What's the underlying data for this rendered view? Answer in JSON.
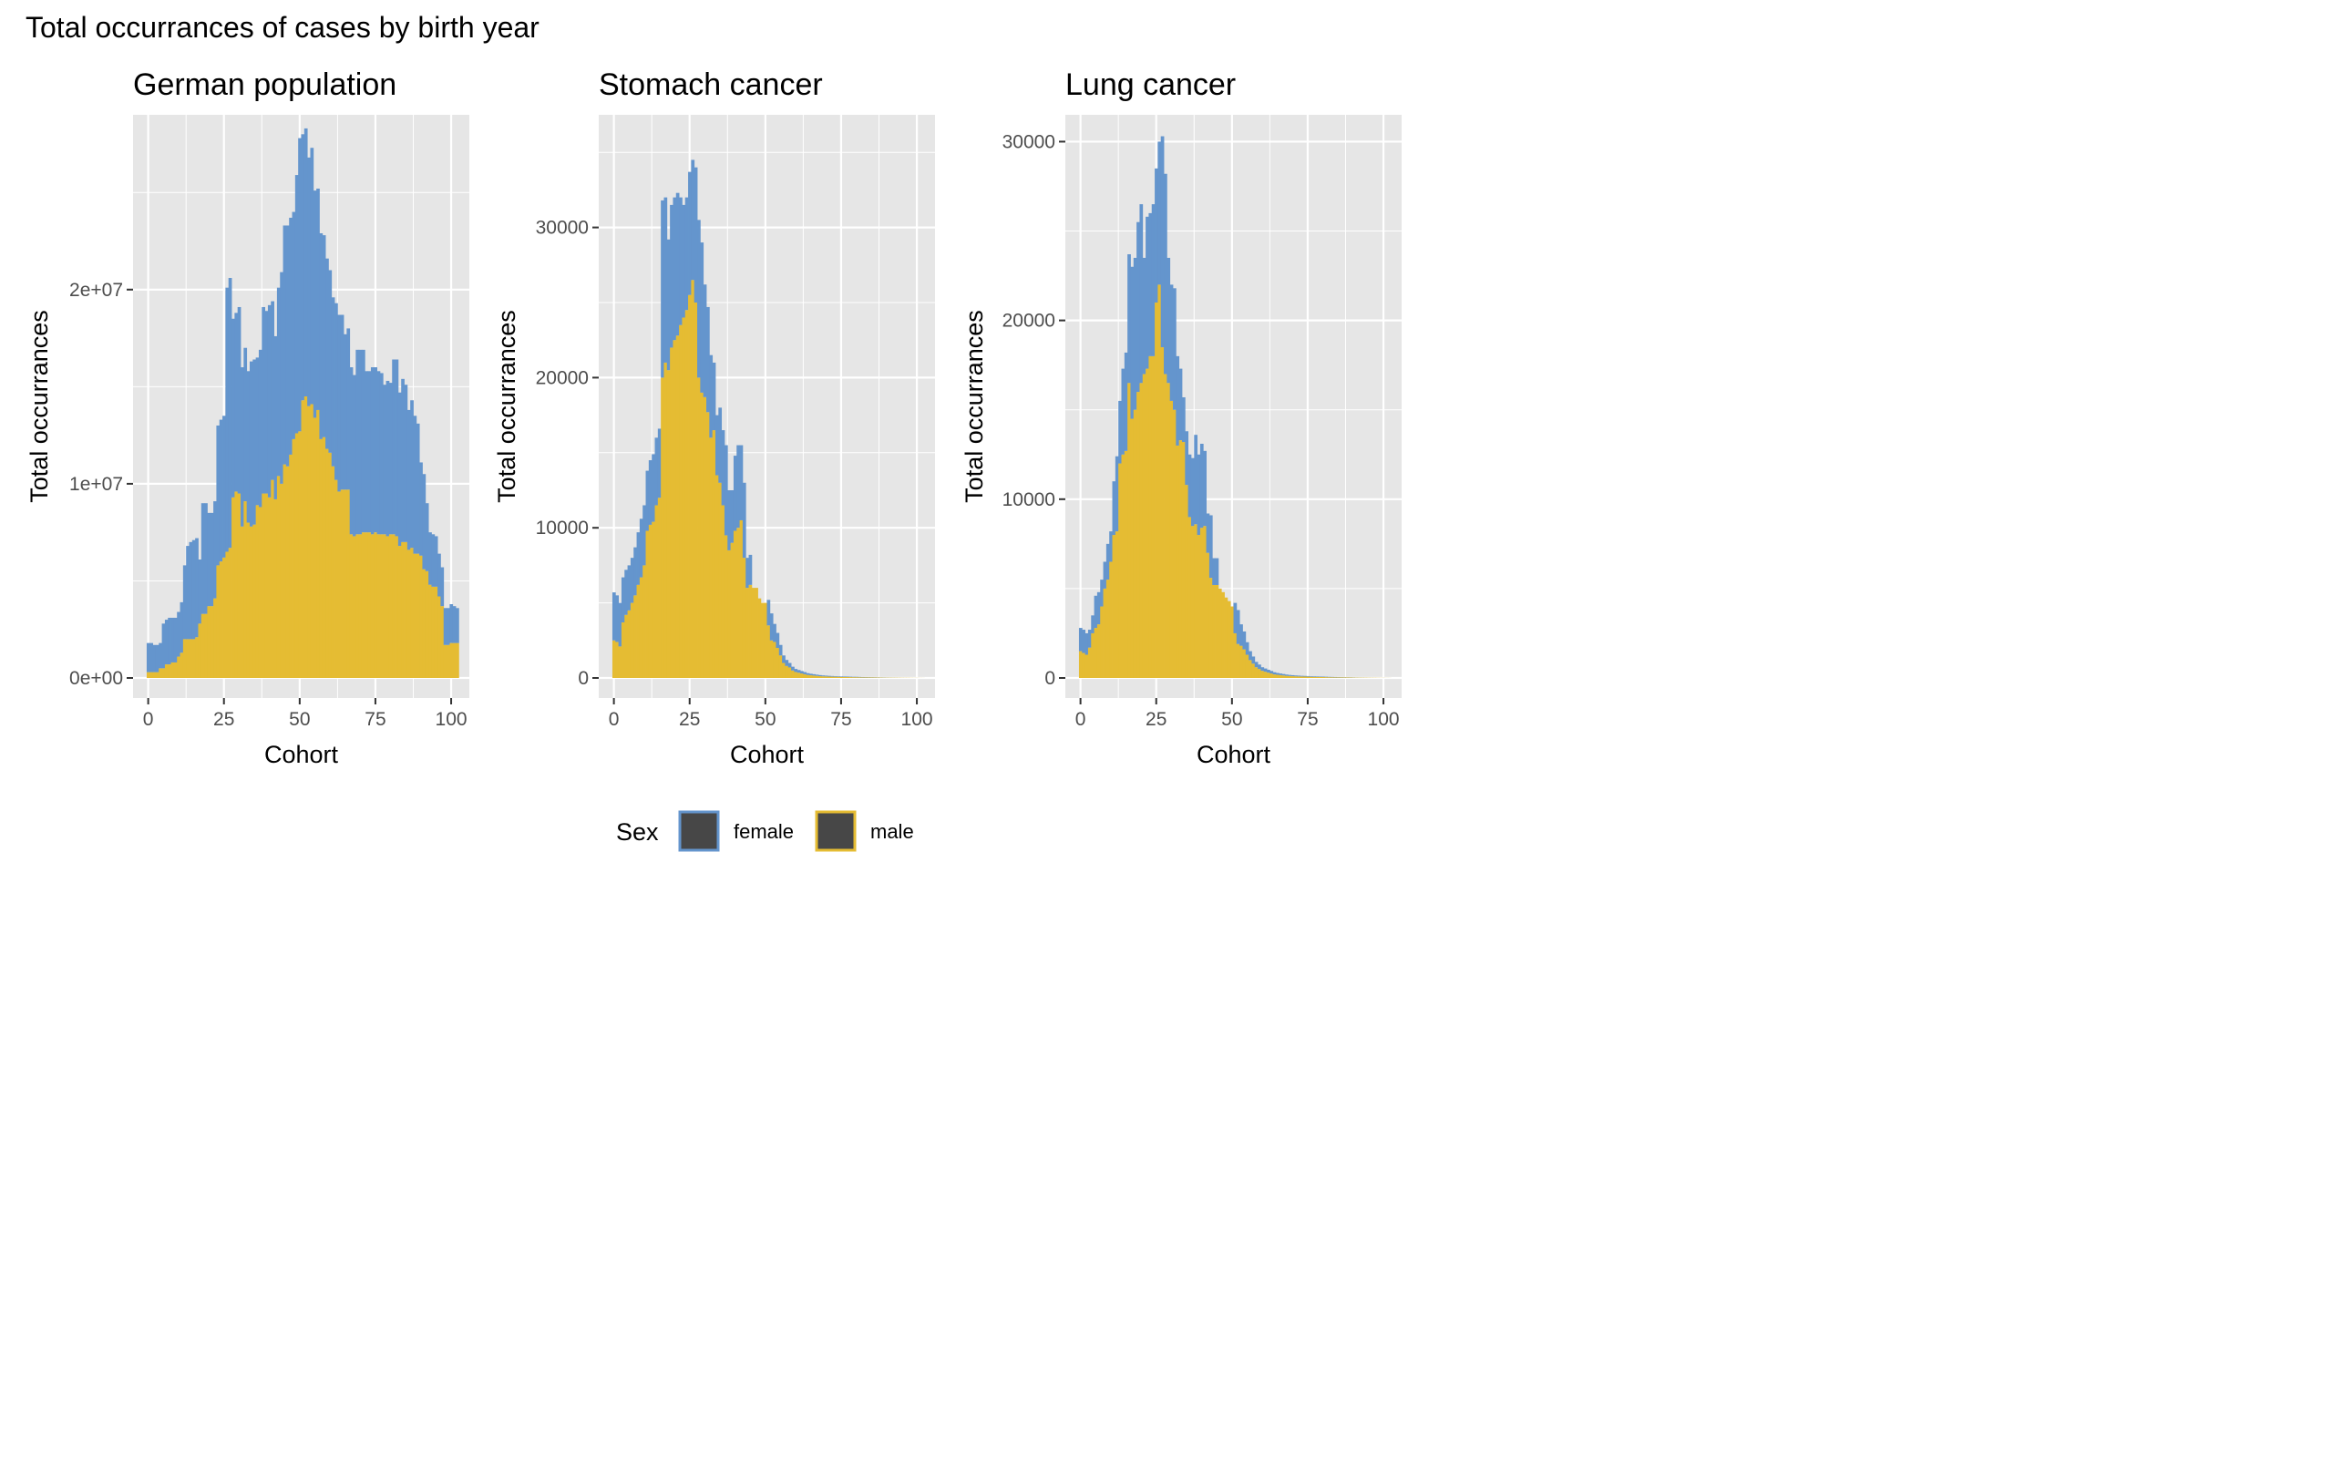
{
  "title": "Total occurrances of cases by birth year",
  "colors": {
    "female": "#6495CD",
    "male": "#E5BC33",
    "panel_bg": "#E6E6E6",
    "grid": "#FFFFFF",
    "legend_key": "#474747"
  },
  "legend": {
    "title": "Sex",
    "items": [
      {
        "label": "female",
        "color": "#6495CD"
      },
      {
        "label": "male",
        "color": "#E5BC33"
      }
    ]
  },
  "chart_data": [
    {
      "type": "bar",
      "stacked": true,
      "title": "German population",
      "xlabel": "Cohort",
      "ylabel": "Total occurrances",
      "xlim": [
        -5,
        106
      ],
      "ylim": [
        0,
        29000000
      ],
      "x_ticks": [
        0,
        25,
        50,
        75,
        100
      ],
      "x_tick_labels": [
        "0",
        "25",
        "50",
        "75",
        "100"
      ],
      "y_ticks": [
        0,
        10000000,
        20000000
      ],
      "y_tick_labels": [
        "0e+00",
        "1e+07",
        "2e+07"
      ],
      "x": [
        0,
        1,
        2,
        3,
        4,
        5,
        6,
        7,
        8,
        9,
        10,
        11,
        12,
        13,
        14,
        15,
        16,
        17,
        18,
        19,
        20,
        21,
        22,
        23,
        24,
        25,
        26,
        27,
        28,
        29,
        30,
        31,
        32,
        33,
        34,
        35,
        36,
        37,
        38,
        39,
        40,
        41,
        42,
        43,
        44,
        45,
        46,
        47,
        48,
        49,
        50,
        51,
        52,
        53,
        54,
        55,
        56,
        57,
        58,
        59,
        60,
        61,
        62,
        63,
        64,
        65,
        66,
        67,
        68,
        69,
        70,
        71,
        72,
        73,
        74,
        75,
        76,
        77,
        78,
        79,
        80,
        81,
        82,
        83,
        84,
        85,
        86,
        87,
        88,
        89,
        90,
        91,
        92,
        93,
        94,
        95,
        96,
        97,
        98,
        99,
        100,
        101,
        102
      ],
      "series": [
        {
          "name": "male",
          "values": [
            300000,
            300000,
            300000,
            300000,
            500000,
            500000,
            700000,
            700000,
            800000,
            800000,
            1100000,
            1300000,
            2000000,
            2000000,
            2000000,
            2000000,
            2100000,
            2800000,
            3300000,
            3300000,
            3700000,
            3700000,
            4100000,
            5800000,
            6000000,
            6200000,
            6500000,
            6700000,
            9300000,
            9600000,
            9500000,
            7800000,
            9100000,
            8000000,
            7800000,
            7900000,
            8900000,
            8800000,
            9500000,
            9500000,
            9300000,
            10200000,
            9200000,
            10400000,
            10000000,
            11000000,
            10900000,
            11500000,
            12300000,
            12600000,
            12700000,
            14300000,
            14500000,
            14000000,
            14100000,
            13400000,
            13800000,
            12300000,
            12400000,
            11800000,
            11600000,
            10900000,
            10200000,
            9600000,
            9700000,
            9700000,
            9700000,
            7400000,
            7300000,
            7400000,
            7400000,
            7500000,
            7500000,
            7500000,
            7400000,
            7500000,
            7400000,
            7400000,
            7400000,
            7300000,
            7400000,
            7400000,
            7300000,
            6800000,
            7000000,
            7000000,
            6600000,
            6700000,
            6400000,
            6400000,
            6300000,
            5600000,
            5500000,
            4800000,
            4700000,
            4700000,
            4200000,
            3700000,
            1700000,
            1700000,
            1800000,
            1800000,
            1800000
          ]
        },
        {
          "name": "female",
          "values": [
            1500000,
            1500000,
            1400000,
            1400000,
            1300000,
            2300000,
            2300000,
            2400000,
            2300000,
            2300000,
            2300000,
            2600000,
            3800000,
            4800000,
            5000000,
            5100000,
            5100000,
            3300000,
            5700000,
            5700000,
            4800000,
            4800000,
            5000000,
            7200000,
            7300000,
            7300000,
            13600000,
            13900000,
            9200000,
            9200000,
            9600000,
            8200000,
            7900000,
            7800000,
            8500000,
            8500000,
            7600000,
            8100000,
            9600000,
            9400000,
            9900000,
            9200000,
            8400000,
            9700000,
            10900000,
            12300000,
            12400000,
            12200000,
            11700000,
            13300000,
            15100000,
            13700000,
            13800000,
            12800000,
            13200000,
            11700000,
            11400000,
            10600000,
            10400000,
            9800000,
            9400000,
            8700000,
            9100000,
            9100000,
            9000000,
            8000000,
            8300000,
            8600000,
            8300000,
            9500000,
            9500000,
            9400000,
            8300000,
            8300000,
            8600000,
            8500000,
            8400000,
            8300000,
            7700000,
            8000000,
            7800000,
            9000000,
            9100000,
            7900000,
            8400000,
            8100000,
            7200000,
            7600000,
            7100000,
            6700000,
            4800000,
            4900000,
            3500000,
            2700000,
            2700000,
            2600000,
            2200000,
            2000000,
            1900000,
            1900000,
            2000000,
            1900000,
            1800000
          ]
        }
      ]
    },
    {
      "type": "bar",
      "stacked": true,
      "title": "Stomach cancer",
      "xlabel": "Cohort",
      "ylabel": "Total occurrances",
      "xlim": [
        -5,
        106
      ],
      "ylim": [
        0,
        37500
      ],
      "x_ticks": [
        0,
        25,
        50,
        75,
        100
      ],
      "x_tick_labels": [
        "0",
        "25",
        "50",
        "75",
        "100"
      ],
      "y_ticks": [
        0,
        10000,
        20000,
        30000
      ],
      "y_tick_labels": [
        "0",
        "10000",
        "20000",
        "30000"
      ],
      "x": [
        0,
        1,
        2,
        3,
        4,
        5,
        6,
        7,
        8,
        9,
        10,
        11,
        12,
        13,
        14,
        15,
        16,
        17,
        18,
        19,
        20,
        21,
        22,
        23,
        24,
        25,
        26,
        27,
        28,
        29,
        30,
        31,
        32,
        33,
        34,
        35,
        36,
        37,
        38,
        39,
        40,
        41,
        42,
        43,
        44,
        45,
        46,
        47,
        48,
        49,
        50,
        51,
        52,
        53,
        54,
        55,
        56,
        57,
        58,
        59,
        60,
        61,
        62,
        63,
        64,
        65,
        66,
        67,
        68,
        69,
        70,
        71,
        72,
        73,
        74,
        75,
        76,
        77,
        78,
        79,
        80,
        81,
        82,
        83,
        84,
        85,
        86,
        87,
        88,
        89,
        90,
        91,
        92,
        93,
        94,
        95,
        96,
        97,
        98,
        99,
        100,
        101,
        102
      ],
      "series": [
        {
          "name": "male",
          "values": [
            2500,
            2400,
            2100,
            3700,
            4200,
            4500,
            5000,
            5500,
            6200,
            6700,
            7500,
            9800,
            10200,
            10400,
            11500,
            12000,
            20000,
            21000,
            20500,
            22000,
            22500,
            22800,
            23500,
            24000,
            24500,
            25500,
            26500,
            25000,
            20000,
            19000,
            18700,
            17700,
            16000,
            16500,
            13500,
            13000,
            11500,
            9500,
            8500,
            9000,
            9800,
            10000,
            10500,
            8000,
            6000,
            6200,
            6000,
            6000,
            5300,
            5000,
            5000,
            3500,
            2500,
            2400,
            2000,
            1500,
            1000,
            800,
            700,
            500,
            400,
            350,
            300,
            250,
            200,
            180,
            160,
            140,
            120,
            110,
            100,
            90,
            85,
            80,
            75,
            70,
            65,
            60,
            55,
            50,
            50,
            45,
            40,
            38,
            35,
            32,
            30,
            28,
            26,
            24,
            22,
            20,
            18,
            16,
            14,
            12,
            10,
            10,
            8,
            6,
            5,
            4,
            3
          ]
        },
        {
          "name": "female",
          "values": [
            3200,
            3100,
            2900,
            3000,
            3000,
            3000,
            3000,
            3200,
            3500,
            3900,
            4000,
            4000,
            4300,
            4500,
            4500,
            4600,
            11800,
            11000,
            8700,
            9500,
            9500,
            9500,
            8500,
            7500,
            7500,
            8200,
            8000,
            9000,
            10500,
            10000,
            7500,
            7000,
            5500,
            4500,
            4000,
            5000,
            5000,
            6000,
            4000,
            3500,
            5000,
            5500,
            5000,
            5000,
            2000,
            2000,
            0,
            0,
            0,
            0,
            0,
            1700,
            1800,
            1200,
            1000,
            700,
            500,
            400,
            300,
            250,
            200,
            180,
            160,
            140,
            120,
            100,
            90,
            80,
            70,
            60,
            55,
            50,
            45,
            40,
            38,
            36,
            34,
            32,
            30,
            28,
            26,
            24,
            22,
            20,
            18,
            16,
            14,
            12,
            10,
            10,
            8,
            6,
            5,
            4,
            3,
            2,
            2,
            1,
            1,
            1,
            1,
            1,
            1
          ]
        }
      ]
    },
    {
      "type": "bar",
      "stacked": true,
      "title": "Lung cancer",
      "xlabel": "Cohort",
      "ylabel": "Total occurrances",
      "xlim": [
        -5,
        106
      ],
      "ylim": [
        0,
        31500
      ],
      "x_ticks": [
        0,
        25,
        50,
        75,
        100
      ],
      "x_tick_labels": [
        "0",
        "25",
        "50",
        "75",
        "100"
      ],
      "y_ticks": [
        0,
        10000,
        20000,
        30000
      ],
      "y_tick_labels": [
        "0",
        "10000",
        "20000",
        "30000"
      ],
      "x": [
        0,
        1,
        2,
        3,
        4,
        5,
        6,
        7,
        8,
        9,
        10,
        11,
        12,
        13,
        14,
        15,
        16,
        17,
        18,
        19,
        20,
        21,
        22,
        23,
        24,
        25,
        26,
        27,
        28,
        29,
        30,
        31,
        32,
        33,
        34,
        35,
        36,
        37,
        38,
        39,
        40,
        41,
        42,
        43,
        44,
        45,
        46,
        47,
        48,
        49,
        50,
        51,
        52,
        53,
        54,
        55,
        56,
        57,
        58,
        59,
        60,
        61,
        62,
        63,
        64,
        65,
        66,
        67,
        68,
        69,
        70,
        71,
        72,
        73,
        74,
        75,
        76,
        77,
        78,
        79,
        80,
        81,
        82,
        83,
        84,
        85,
        86,
        87,
        88,
        89,
        90,
        91,
        92,
        93,
        94,
        95,
        96,
        97,
        98,
        99,
        100,
        101,
        102
      ],
      "series": [
        {
          "name": "male",
          "values": [
            1500,
            1400,
            1300,
            1700,
            2500,
            2800,
            3000,
            4000,
            5000,
            5500,
            6500,
            8000,
            8200,
            12000,
            12500,
            12700,
            16500,
            14500,
            15000,
            16000,
            16500,
            17000,
            17300,
            18000,
            18000,
            21000,
            22000,
            18500,
            17000,
            16500,
            15500,
            15000,
            13000,
            13300,
            13200,
            10800,
            9000,
            8500,
            8600,
            8000,
            8400,
            8500,
            7000,
            5600,
            5200,
            5200,
            5000,
            4800,
            4500,
            4300,
            4000,
            2500,
            1900,
            1800,
            1600,
            1300,
            1000,
            800,
            600,
            500,
            400,
            350,
            300,
            250,
            200,
            180,
            160,
            140,
            120,
            110,
            100,
            90,
            85,
            80,
            75,
            70,
            65,
            60,
            55,
            50,
            50,
            45,
            40,
            38,
            35,
            32,
            30,
            28,
            26,
            24,
            22,
            20,
            18,
            16,
            14,
            12,
            10,
            10,
            8,
            6,
            5,
            4,
            3
          ]
        },
        {
          "name": "female",
          "values": [
            1300,
            1300,
            1200,
            1000,
            1000,
            1800,
            1800,
            1500,
            1500,
            2000,
            1700,
            3000,
            4200,
            3500,
            4800,
            5500,
            7200,
            8500,
            8500,
            9500,
            10000,
            6500,
            8500,
            8000,
            8500,
            7500,
            8000,
            11800,
            11200,
            7000,
            6500,
            6800,
            5000,
            4000,
            2500,
            3000,
            3500,
            3800,
            5000,
            4500,
            4700,
            4200,
            2200,
            3500,
            1500,
            1500,
            0,
            0,
            0,
            0,
            0,
            1700,
            1900,
            1200,
            1000,
            700,
            500,
            400,
            300,
            250,
            200,
            180,
            160,
            140,
            120,
            100,
            90,
            80,
            70,
            60,
            55,
            50,
            45,
            40,
            38,
            36,
            34,
            32,
            30,
            28,
            26,
            24,
            22,
            20,
            18,
            16,
            14,
            12,
            10,
            10,
            8,
            6,
            5,
            4,
            3,
            2,
            2,
            1,
            1,
            1,
            1,
            1,
            1
          ]
        }
      ]
    }
  ]
}
